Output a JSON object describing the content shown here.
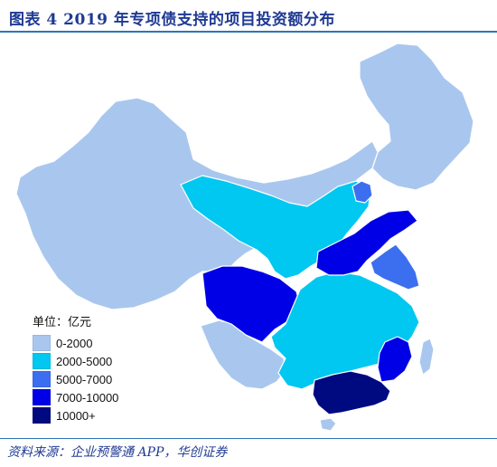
{
  "title": "图表 4 2019 年专项债支持的项目投资额分布",
  "legend": {
    "title": "单位：亿元",
    "items": [
      {
        "label": "0-2000",
        "color": "#a9c7ee"
      },
      {
        "label": "2000-5000",
        "color": "#00c8f0"
      },
      {
        "label": "5000-7000",
        "color": "#3c6ff0"
      },
      {
        "label": "7000-10000",
        "color": "#0000e6"
      },
      {
        "label": "10000+",
        "color": "#000a80"
      }
    ]
  },
  "source": "资料来源：企业预警通 APP，华创证券",
  "map_categories": {
    "west": "0-2000",
    "northeast": "0-2000",
    "sichuan": "7000-10000",
    "guangdong": "10000+",
    "fujian": "7000-10000",
    "shandong_henan": "7000-10000",
    "jiangsu": "5000-7000",
    "beijing": "5000-7000",
    "central_south": "2000-5000",
    "north": "2000-5000",
    "yunnan_guizhou": "0-2000",
    "hainan": "0-2000",
    "taiwan": "0-2000"
  }
}
